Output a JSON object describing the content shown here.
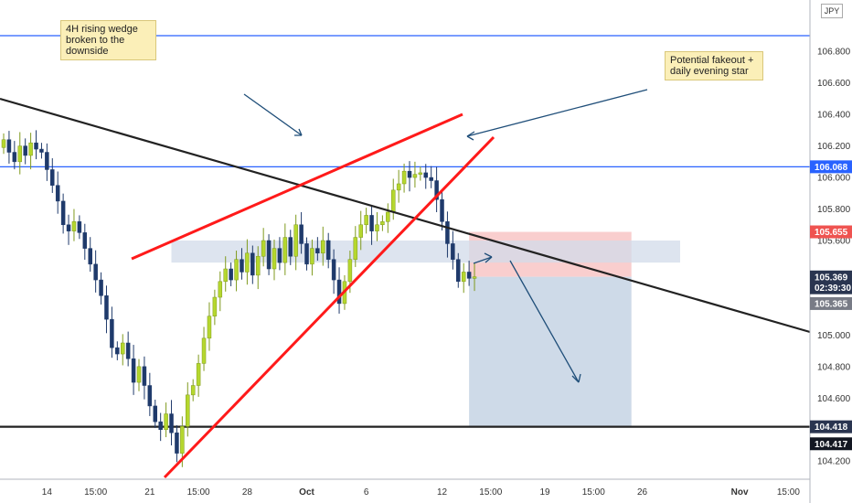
{
  "symbol": {
    "currency_badge": "JPY"
  },
  "notes": {
    "wedge": "4H rising wedge\nbroken to the\ndownside",
    "fakeout": "Potential fakeout +\ndaily evening star"
  },
  "price_badges": [
    {
      "label": "106.068",
      "value": 106.068,
      "color": "#2962ff"
    },
    {
      "label": "105.655",
      "value": 105.655,
      "color": "#ef5350"
    },
    {
      "label": "105.369",
      "value": 105.369,
      "color": "#2a3550"
    },
    {
      "label": "02:39:30",
      "value": 105.3,
      "color": "#2a3550"
    },
    {
      "label": "105.365",
      "value": 105.2,
      "color": "#787b86"
    },
    {
      "label": "104.418",
      "value": 104.418,
      "color": "#2a3550"
    },
    {
      "label": "104.417",
      "value": 104.31,
      "color": "#131722"
    }
  ],
  "colors": {
    "bull": "#b5d72e",
    "bear": "#1f3a6b",
    "wedge": "#ff1a1a",
    "trendline": "#222222",
    "level": "#2962ff",
    "stop": "#f8c6c6",
    "target": "#c9d6e6",
    "zone": "#d2dbea",
    "arrow": "#1f4e79"
  },
  "chart_data": {
    "type": "candlestick",
    "ylim": [
      104.12,
      107.08
    ],
    "y_ticks": [
      {
        "label": "106.800",
        "value": 106.8
      },
      {
        "label": "106.600",
        "value": 106.6
      },
      {
        "label": "106.400",
        "value": 106.4
      },
      {
        "label": "106.200",
        "value": 106.2
      },
      {
        "label": "106.000",
        "value": 106.0
      },
      {
        "label": "105.800",
        "value": 105.8
      },
      {
        "label": "105.600",
        "value": 105.6
      },
      {
        "label": "105.000",
        "value": 105.0
      },
      {
        "label": "104.800",
        "value": 104.8
      },
      {
        "label": "104.600",
        "value": 104.6
      },
      {
        "label": "104.200",
        "value": 104.2
      }
    ],
    "x_ticks": [
      {
        "label": "14",
        "idx": 8
      },
      {
        "label": "15:00",
        "idx": 17
      },
      {
        "label": "21",
        "idx": 27
      },
      {
        "label": "15:00",
        "idx": 36
      },
      {
        "label": "28",
        "idx": 45
      },
      {
        "label": "Oct",
        "idx": 56
      },
      {
        "label": "6",
        "idx": 67
      },
      {
        "label": "12",
        "idx": 81
      },
      {
        "label": "15:00",
        "idx": 90
      },
      {
        "label": "19",
        "idx": 100
      },
      {
        "label": "15:00",
        "idx": 109
      },
      {
        "label": "26",
        "idx": 118
      },
      {
        "label": "Nov",
        "idx": 136
      },
      {
        "label": "15:00",
        "idx": 145
      }
    ],
    "closes": [
      106.24,
      106.16,
      106.1,
      106.2,
      106.14,
      106.22,
      106.18,
      106.16,
      106.05,
      105.95,
      105.85,
      105.7,
      105.66,
      105.72,
      105.65,
      105.55,
      105.45,
      105.35,
      105.25,
      105.1,
      104.92,
      104.88,
      104.95,
      104.85,
      104.7,
      104.8,
      104.68,
      104.55,
      104.45,
      104.4,
      104.5,
      104.38,
      104.25,
      104.42,
      104.62,
      104.68,
      104.82,
      104.98,
      105.12,
      105.24,
      105.34,
      105.42,
      105.35,
      105.48,
      105.4,
      105.52,
      105.38,
      105.5,
      105.6,
      105.42,
      105.55,
      105.46,
      105.62,
      105.5,
      105.7,
      105.58,
      105.45,
      105.55,
      105.52,
      105.6,
      105.48,
      105.35,
      105.2,
      105.34,
      105.48,
      105.62,
      105.7,
      105.76,
      105.66,
      105.7,
      105.72,
      105.78,
      105.92,
      105.96,
      106.04,
      106.0,
      106.02,
      106.03,
      106.0,
      105.98,
      105.86,
      105.72,
      105.58,
      105.48,
      105.34,
      105.4,
      105.36,
      105.37
    ],
    "zone": {
      "top": 105.6,
      "bottom": 105.46,
      "from_idx": 31,
      "to_idx": 125
    },
    "levels": [
      {
        "value": 106.9
      },
      {
        "value": 106.068
      },
      {
        "value": 104.418
      }
    ],
    "trade": {
      "entry": 105.37,
      "stop": 105.655,
      "target": 104.418,
      "from_idx": 86,
      "to_idx": 116
    }
  }
}
